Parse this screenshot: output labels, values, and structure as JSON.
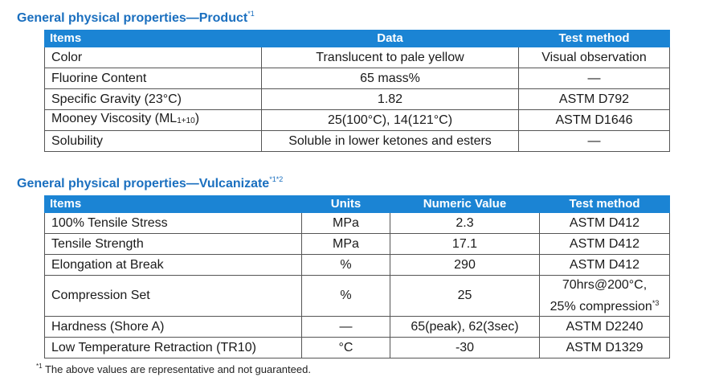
{
  "product": {
    "title": "General physical properties—Product",
    "title_note": "*1",
    "headers": {
      "items": "Items",
      "data": "Data",
      "test_method": "Test method"
    },
    "rows": [
      {
        "item": "Color",
        "data": "Translucent to pale yellow",
        "method": "Visual observation"
      },
      {
        "item": "Fluorine Content",
        "data": "65 mass%",
        "method": "—"
      },
      {
        "item": "Specific Gravity (23°C)",
        "data": "1.82",
        "method": "ASTM D792"
      },
      {
        "item": "Mooney Viscosity (ML",
        "item_sub": "1+10",
        "item_end": ")",
        "data": "25(100°C), 14(121°C)",
        "method": "ASTM D1646"
      },
      {
        "item": "Solubility",
        "data": "Soluble in lower ketones and esters",
        "method": "—"
      }
    ]
  },
  "vulcanizate": {
    "title": "General physical properties—Vulcanizate",
    "title_note": "*1*2",
    "headers": {
      "items": "Items",
      "units": "Units",
      "value": "Numeric Value",
      "test_method": "Test method"
    },
    "rows": [
      {
        "item": "100% Tensile Stress",
        "units": "MPa",
        "value": "2.3",
        "method": "ASTM D412"
      },
      {
        "item": "Tensile Strength",
        "units": "MPa",
        "value": "17.1",
        "method": "ASTM D412"
      },
      {
        "item": "Elongation at Break",
        "units": "%",
        "value": "290",
        "method": "ASTM D412"
      },
      {
        "item": "Compression Set",
        "units": "%",
        "value": "25",
        "method_line1": "70hrs@200°C,",
        "method_line2": "25% compression",
        "method_note": "*3"
      },
      {
        "item": "Hardness (Shore A)",
        "units": "—",
        "value": "65(peak), 62(3sec)",
        "method": "ASTM D2240"
      },
      {
        "item": "Low Temperature Retraction (TR10)",
        "units": "°C",
        "value": "-30",
        "method": "ASTM D1329"
      }
    ]
  },
  "footnote": {
    "mark": "*1",
    "text": " The above values are representative and not guaranteed."
  }
}
